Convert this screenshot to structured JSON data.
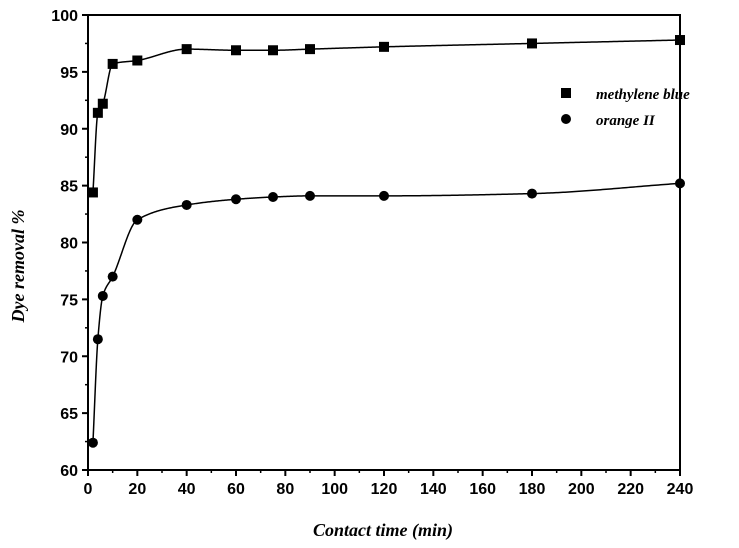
{
  "chart_data": {
    "type": "scatter",
    "title": "",
    "xlabel": "Contact time (min)",
    "ylabel": "Dye removal %",
    "xlim": [
      0,
      240
    ],
    "ylim": [
      60,
      100
    ],
    "xticks": [
      0,
      20,
      40,
      60,
      80,
      100,
      120,
      140,
      160,
      180,
      200,
      220,
      240
    ],
    "yticks": [
      60,
      65,
      70,
      75,
      80,
      85,
      90,
      95,
      100
    ],
    "grid": false,
    "legend": "right",
    "series": [
      {
        "name": "methylene blue",
        "marker": "square",
        "fit": "curve",
        "x": [
          2,
          4,
          6,
          10,
          20,
          40,
          60,
          75,
          90,
          120,
          180,
          240
        ],
        "y": [
          84.4,
          91.4,
          92.2,
          95.7,
          96.0,
          97.0,
          96.9,
          96.9,
          97.0,
          97.2,
          97.5,
          97.8
        ]
      },
      {
        "name": "orange II",
        "marker": "circle",
        "fit": "curve",
        "x": [
          2,
          4,
          6,
          10,
          20,
          40,
          60,
          75,
          90,
          120,
          180,
          240
        ],
        "y": [
          62.4,
          71.5,
          75.3,
          77.0,
          82.0,
          83.3,
          83.8,
          84.0,
          84.1,
          84.1,
          84.3,
          85.2
        ]
      }
    ]
  }
}
